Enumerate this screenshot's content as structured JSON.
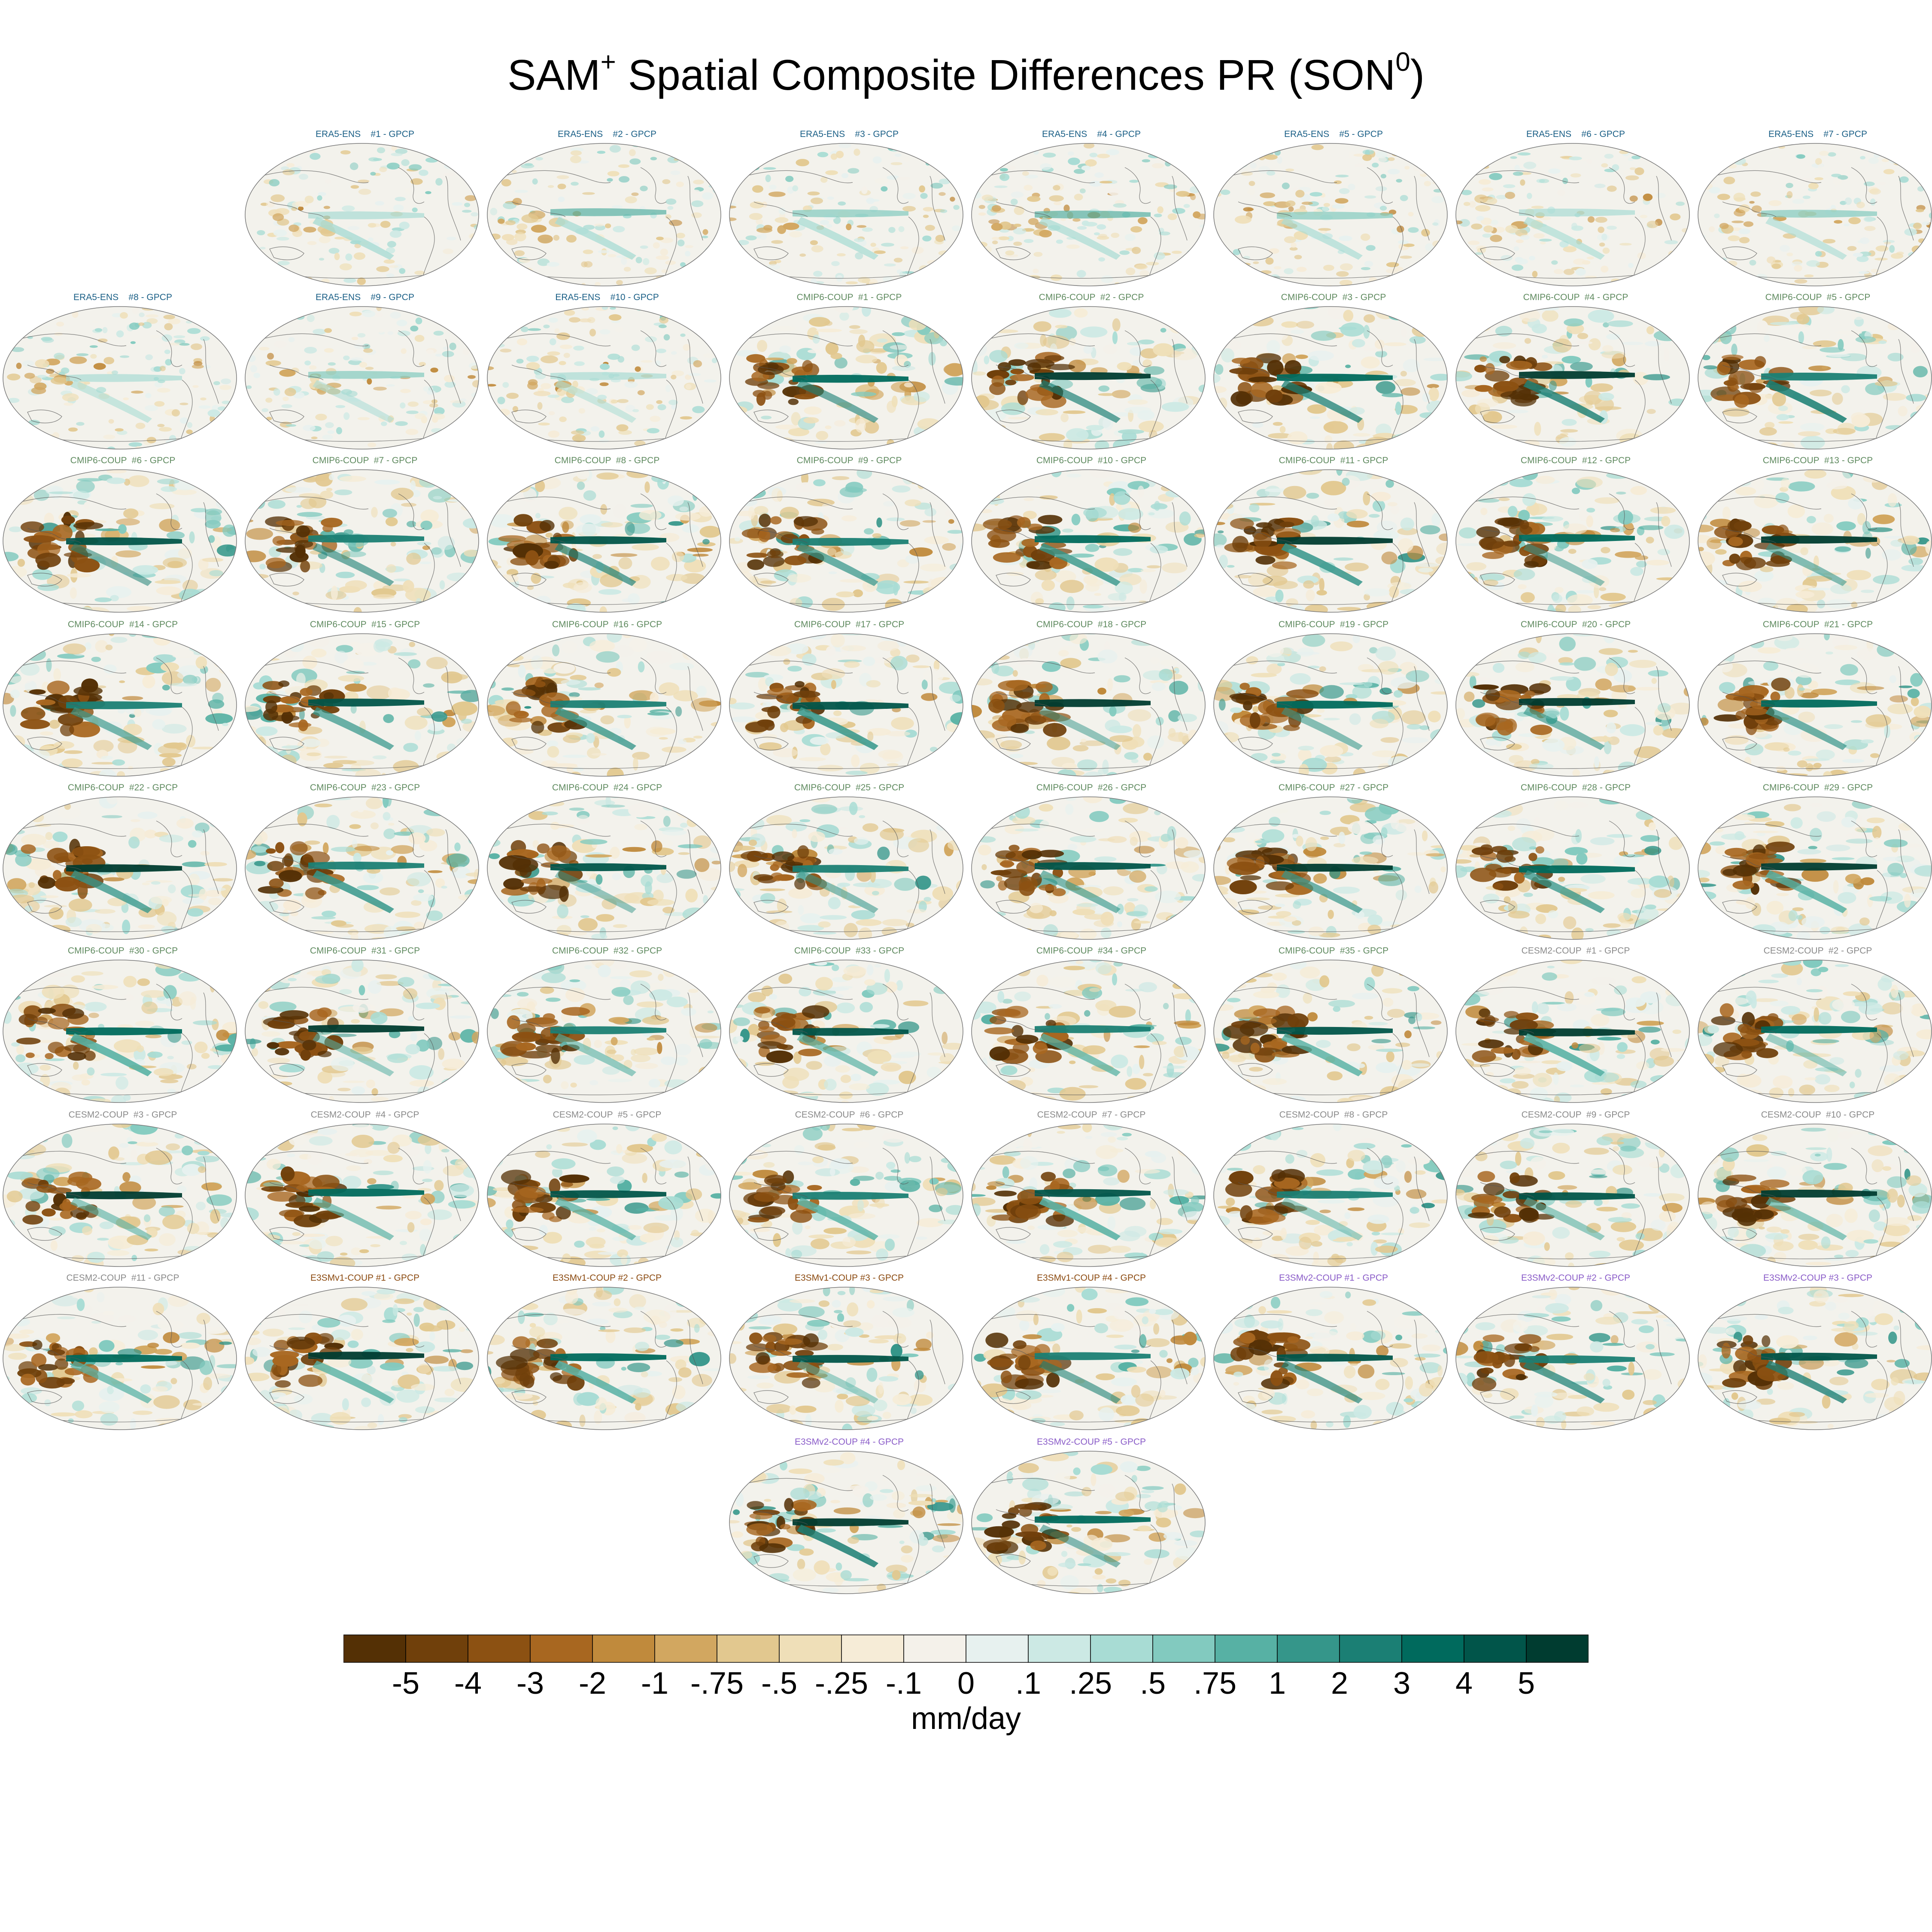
{
  "title": {
    "main": "SAM",
    "sup1": "+",
    "rest": " Spatial Composite Differences PR (SON",
    "sup2": "0",
    "end": ")"
  },
  "chart_data": {
    "type": "heatmap",
    "title": "SAM+ Spatial Composite Differences PR (SON0)",
    "projection": "global map panels",
    "panels": [
      {
        "label": "ERA5-ENS    #1 - GPCP",
        "group": "ERA5-ENS"
      },
      {
        "label": "ERA5-ENS    #2 - GPCP",
        "group": "ERA5-ENS"
      },
      {
        "label": "ERA5-ENS    #3 - GPCP",
        "group": "ERA5-ENS"
      },
      {
        "label": "ERA5-ENS    #4 - GPCP",
        "group": "ERA5-ENS"
      },
      {
        "label": "ERA5-ENS    #5 - GPCP",
        "group": "ERA5-ENS"
      },
      {
        "label": "ERA5-ENS    #6 - GPCP",
        "group": "ERA5-ENS"
      },
      {
        "label": "ERA5-ENS    #7 - GPCP",
        "group": "ERA5-ENS"
      },
      {
        "label": "ERA5-ENS    #8 - GPCP",
        "group": "ERA5-ENS"
      },
      {
        "label": "ERA5-ENS    #9 - GPCP",
        "group": "ERA5-ENS"
      },
      {
        "label": "ERA5-ENS    #10 - GPCP",
        "group": "ERA5-ENS"
      },
      {
        "label": "CMIP6-COUP  #1 - GPCP",
        "group": "CMIP6-COUP"
      },
      {
        "label": "CMIP6-COUP  #2 - GPCP",
        "group": "CMIP6-COUP"
      },
      {
        "label": "CMIP6-COUP  #3 - GPCP",
        "group": "CMIP6-COUP"
      },
      {
        "label": "CMIP6-COUP  #4 - GPCP",
        "group": "CMIP6-COUP"
      },
      {
        "label": "CMIP6-COUP  #5 - GPCP",
        "group": "CMIP6-COUP"
      },
      {
        "label": "CMIP6-COUP  #6 - GPCP",
        "group": "CMIP6-COUP"
      },
      {
        "label": "CMIP6-COUP  #7 - GPCP",
        "group": "CMIP6-COUP"
      },
      {
        "label": "CMIP6-COUP  #8 - GPCP",
        "group": "CMIP6-COUP"
      },
      {
        "label": "CMIP6-COUP  #9 - GPCP",
        "group": "CMIP6-COUP"
      },
      {
        "label": "CMIP6-COUP  #10 - GPCP",
        "group": "CMIP6-COUP"
      },
      {
        "label": "CMIP6-COUP  #11 - GPCP",
        "group": "CMIP6-COUP"
      },
      {
        "label": "CMIP6-COUP  #12 - GPCP",
        "group": "CMIP6-COUP"
      },
      {
        "label": "CMIP6-COUP  #13 - GPCP",
        "group": "CMIP6-COUP"
      },
      {
        "label": "CMIP6-COUP  #14 - GPCP",
        "group": "CMIP6-COUP"
      },
      {
        "label": "CMIP6-COUP  #15 - GPCP",
        "group": "CMIP6-COUP"
      },
      {
        "label": "CMIP6-COUP  #16 - GPCP",
        "group": "CMIP6-COUP"
      },
      {
        "label": "CMIP6-COUP  #17 - GPCP",
        "group": "CMIP6-COUP"
      },
      {
        "label": "CMIP6-COUP  #18 - GPCP",
        "group": "CMIP6-COUP"
      },
      {
        "label": "CMIP6-COUP  #19 - GPCP",
        "group": "CMIP6-COUP"
      },
      {
        "label": "CMIP6-COUP  #20 - GPCP",
        "group": "CMIP6-COUP"
      },
      {
        "label": "CMIP6-COUP  #21 - GPCP",
        "group": "CMIP6-COUP"
      },
      {
        "label": "CMIP6-COUP  #22 - GPCP",
        "group": "CMIP6-COUP"
      },
      {
        "label": "CMIP6-COUP  #23 - GPCP",
        "group": "CMIP6-COUP"
      },
      {
        "label": "CMIP6-COUP  #24 - GPCP",
        "group": "CMIP6-COUP"
      },
      {
        "label": "CMIP6-COUP  #25 - GPCP",
        "group": "CMIP6-COUP"
      },
      {
        "label": "CMIP6-COUP  #26 - GPCP",
        "group": "CMIP6-COUP"
      },
      {
        "label": "CMIP6-COUP  #27 - GPCP",
        "group": "CMIP6-COUP"
      },
      {
        "label": "CMIP6-COUP  #28 - GPCP",
        "group": "CMIP6-COUP"
      },
      {
        "label": "CMIP6-COUP  #29 - GPCP",
        "group": "CMIP6-COUP"
      },
      {
        "label": "CMIP6-COUP  #30 - GPCP",
        "group": "CMIP6-COUP"
      },
      {
        "label": "CMIP6-COUP  #31 - GPCP",
        "group": "CMIP6-COUP"
      },
      {
        "label": "CMIP6-COUP  #32 - GPCP",
        "group": "CMIP6-COUP"
      },
      {
        "label": "CMIP6-COUP  #33 - GPCP",
        "group": "CMIP6-COUP"
      },
      {
        "label": "CMIP6-COUP  #34 - GPCP",
        "group": "CMIP6-COUP"
      },
      {
        "label": "CMIP6-COUP  #35 - GPCP",
        "group": "CMIP6-COUP"
      },
      {
        "label": "CESM2-COUP  #1 - GPCP",
        "group": "CESM2-COUP"
      },
      {
        "label": "CESM2-COUP  #2 - GPCP",
        "group": "CESM2-COUP"
      },
      {
        "label": "CESM2-COUP  #3 - GPCP",
        "group": "CESM2-COUP"
      },
      {
        "label": "CESM2-COUP  #4 - GPCP",
        "group": "CESM2-COUP"
      },
      {
        "label": "CESM2-COUP  #5 - GPCP",
        "group": "CESM2-COUP"
      },
      {
        "label": "CESM2-COUP  #6 - GPCP",
        "group": "CESM2-COUP"
      },
      {
        "label": "CESM2-COUP  #7 - GPCP",
        "group": "CESM2-COUP"
      },
      {
        "label": "CESM2-COUP  #8 - GPCP",
        "group": "CESM2-COUP"
      },
      {
        "label": "CESM2-COUP  #9 - GPCP",
        "group": "CESM2-COUP"
      },
      {
        "label": "CESM2-COUP  #10 - GPCP",
        "group": "CESM2-COUP"
      },
      {
        "label": "CESM2-COUP  #11 - GPCP",
        "group": "CESM2-COUP"
      },
      {
        "label": "E3SMv1-COUP #1 - GPCP",
        "group": "E3SMv1-COUP"
      },
      {
        "label": "E3SMv1-COUP #2 - GPCP",
        "group": "E3SMv1-COUP"
      },
      {
        "label": "E3SMv1-COUP #3 - GPCP",
        "group": "E3SMv1-COUP"
      },
      {
        "label": "E3SMv1-COUP #4 - GPCP",
        "group": "E3SMv1-COUP"
      },
      {
        "label": "E3SMv2-COUP #1 - GPCP",
        "group": "E3SMv2-COUP"
      },
      {
        "label": "E3SMv2-COUP #2 - GPCP",
        "group": "E3SMv2-COUP"
      },
      {
        "label": "E3SMv2-COUP #3 - GPCP",
        "group": "E3SMv2-COUP"
      },
      {
        "label": "E3SMv2-COUP #4 - GPCP",
        "group": "E3SMv2-COUP"
      },
      {
        "label": "E3SMv2-COUP #5 - GPCP",
        "group": "E3SMv2-COUP"
      }
    ],
    "group_colors": {
      "ERA5-ENS": "#1a5f86",
      "CMIP6-COUP": "#5f8a5f",
      "CESM2-COUP": "#8a8a8a",
      "E3SMv1-COUP": "#8b4a10",
      "E3SMv2-COUP": "#8a5cc8"
    },
    "colorbar": {
      "ticks": [
        "-5",
        "-4",
        "-3",
        "-2",
        "-1",
        "-.75",
        "-.5",
        "-.25",
        "-.1",
        "0",
        ".1",
        ".25",
        ".5",
        ".75",
        "1",
        "2",
        "3",
        "4",
        "5"
      ],
      "colors": [
        "#543005",
        "#70400b",
        "#8c5112",
        "#a86720",
        "#c08a3c",
        "#d2a760",
        "#e2c88f",
        "#efdfb8",
        "#f6ecd7",
        "#f4f1ea",
        "#e7f1ef",
        "#cce9e4",
        "#a8dcd4",
        "#82cabf",
        "#57b1a4",
        "#35968a",
        "#1b7f74",
        "#006a5d",
        "#01554a",
        "#003c30"
      ],
      "label": "mm/day"
    }
  }
}
